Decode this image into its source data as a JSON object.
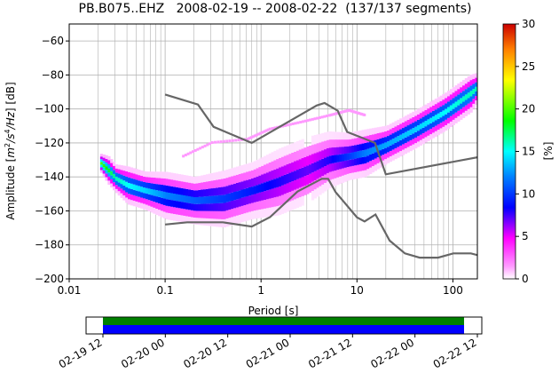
{
  "chart_data": [
    {
      "type": "heatmap",
      "title": "PB.B075..EHZ   2008-02-19 -- 2008-02-22  (137/137 segments)",
      "xlabel": "Period [s]",
      "ylabel": "Amplitude [m2/s4/Hz] [dB]",
      "ylabel_parts": {
        "base": "Amplitude [",
        "m": "m",
        "sup2": "2",
        "s": "/s",
        "sup4": "4",
        "hz": "/Hz",
        "end": "] [dB]"
      },
      "xscale": "log",
      "xlim": [
        0.01,
        180
      ],
      "ylim": [
        -200,
        -50
      ],
      "xticks": [
        {
          "value": 0.01,
          "label": "0.01"
        },
        {
          "value": 0.1,
          "label": "0.1"
        },
        {
          "value": 1,
          "label": "1"
        },
        {
          "value": 10,
          "label": "10"
        },
        {
          "value": 100,
          "label": "100"
        }
      ],
      "yticks": [
        -200,
        -180,
        -160,
        -140,
        -120,
        -100,
        -80,
        -60
      ],
      "ytick_labels": [
        "−200",
        "−180",
        "−160",
        "−140",
        "−120",
        "−100",
        "−80",
        "−60"
      ],
      "grid": true,
      "colorbar": {
        "label": "[%]",
        "range": [
          0,
          30
        ],
        "ticks": [
          0,
          5,
          10,
          15,
          20,
          25,
          30
        ],
        "colormap": "pqlx"
      },
      "noise_models": [
        {
          "name": "NHNM",
          "color": "#666666",
          "points": [
            [
              0.1,
              -91.5
            ],
            [
              0.22,
              -97.4
            ],
            [
              0.32,
              -110.5
            ],
            [
              0.8,
              -120
            ],
            [
              3.8,
              -98
            ],
            [
              4.6,
              -96.5
            ],
            [
              6.3,
              -101
            ],
            [
              7.9,
              -113.5
            ],
            [
              15.4,
              -120
            ],
            [
              20,
              -138.5
            ],
            [
              200,
              -128
            ]
          ]
        },
        {
          "name": "NLNM",
          "color": "#666666",
          "points": [
            [
              0.1,
              -168
            ],
            [
              0.17,
              -166.7
            ],
            [
              0.4,
              -166.7
            ],
            [
              0.8,
              -169.2
            ],
            [
              1.24,
              -163.7
            ],
            [
              2.4,
              -148.6
            ],
            [
              4.3,
              -141.1
            ],
            [
              5,
              -141.1
            ],
            [
              6,
              -149
            ],
            [
              10,
              -163.8
            ],
            [
              12,
              -166.2
            ],
            [
              15.6,
              -162.1
            ],
            [
              21.9,
              -177.5
            ],
            [
              31.6,
              -185
            ],
            [
              45,
              -187.5
            ],
            [
              70,
              -187.5
            ],
            [
              101,
              -185
            ],
            [
              154,
              -185
            ],
            [
              180,
              -186
            ]
          ]
        }
      ],
      "psd_density": [
        {
          "period": 0.021,
          "center": -132,
          "spread": 2,
          "peak": 20
        },
        {
          "period": 0.025,
          "center": -136,
          "spread": 3,
          "peak": 18
        },
        {
          "period": 0.03,
          "center": -141,
          "spread": 3,
          "peak": 16
        },
        {
          "period": 0.04,
          "center": -145,
          "spread": 4,
          "peak": 15
        },
        {
          "period": 0.06,
          "center": -148,
          "spread": 4,
          "peak": 14
        },
        {
          "period": 0.1,
          "center": -151,
          "spread": 5,
          "peak": 12
        },
        {
          "period": 0.2,
          "center": -154,
          "spread": 5,
          "peak": 11
        },
        {
          "period": 0.4,
          "center": -153,
          "spread": 6,
          "peak": 10
        },
        {
          "period": 0.8,
          "center": -148,
          "spread": 6,
          "peak": 9
        },
        {
          "period": 1.5,
          "center": -143,
          "spread": 7,
          "peak": 8
        },
        {
          "period": 3,
          "center": -136,
          "spread": 7,
          "peak": 7
        },
        {
          "period": 5,
          "center": -130,
          "spread": 6,
          "peak": 8
        },
        {
          "period": 8,
          "center": -128,
          "spread": 5,
          "peak": 10
        },
        {
          "period": 12,
          "center": -126,
          "spread": 5,
          "peak": 12
        },
        {
          "period": 20,
          "center": -121,
          "spread": 4,
          "peak": 13
        },
        {
          "period": 40,
          "center": -112,
          "spread": 4,
          "peak": 14
        },
        {
          "period": 80,
          "center": -102,
          "spread": 4,
          "peak": 15
        },
        {
          "period": 150,
          "center": -91,
          "spread": 4,
          "peak": 16
        },
        {
          "period": 180,
          "center": -87,
          "spread": 3,
          "peak": 16
        }
      ],
      "outliers": [
        {
          "period": 0.15,
          "level": -128
        },
        {
          "period": 0.3,
          "level": -120
        },
        {
          "period": 0.7,
          "level": -118
        },
        {
          "period": 1.2,
          "level": -112
        },
        {
          "period": 2.5,
          "level": -108
        },
        {
          "period": 5,
          "level": -104
        },
        {
          "period": 8,
          "level": -101
        },
        {
          "period": 12,
          "level": -104
        }
      ]
    },
    {
      "type": "timeline",
      "xlim": [
        "2008-02-19 12:00",
        "2008-02-22 12:00"
      ],
      "xticks": [
        "02-19 12",
        "02-20 00",
        "02-20 12",
        "02-21 00",
        "02-21 12",
        "02-22 00",
        "02-22 12"
      ],
      "coverage": {
        "start": "2008-02-19 12:00",
        "end": "2008-02-22 10:30"
      },
      "colors": {
        "top": "#008000",
        "bottom": "#0000ff"
      }
    }
  ]
}
